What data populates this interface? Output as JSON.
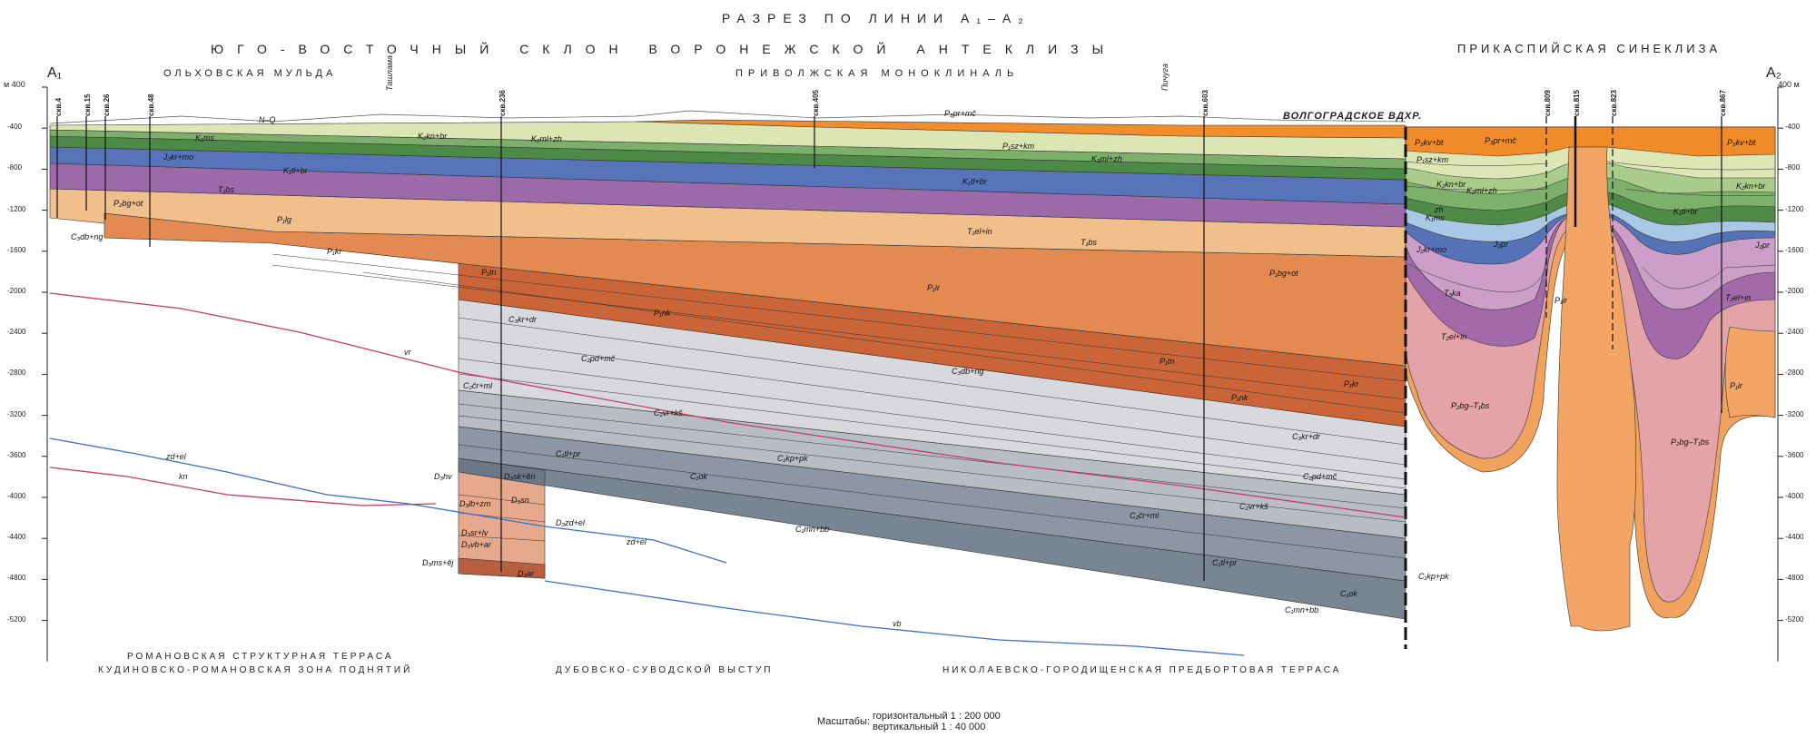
{
  "title": "РАЗРЕЗ ПО ЛИНИИ А₁–А₂",
  "region_left": "ЮГО-ВОСТОЧНЫЙ СКЛОН ВОРОНЕЖСКОЙ АНТЕКЛИЗЫ",
  "region_right": "ПРИКАСПИЙСКАЯ СИНЕКЛИЗА",
  "subregion_left": "ОЛЬХОВСКАЯ МУЛЬДА",
  "subregion_center": "ПРИВОЛЖСКАЯ МОНОКЛИНАЛЬ",
  "line_start": "А₁",
  "line_end": "А₂",
  "unit_left": "м 400",
  "unit_right": "400 м",
  "depth_ticks": [
    "-400",
    "-800",
    "-1200",
    "-1600",
    "-2000",
    "-2400",
    "-2800",
    "-3200",
    "-3600",
    "-4000",
    "-4400",
    "-4800",
    "-5200"
  ],
  "rivers": [
    "Ташлама",
    "Пичуга"
  ],
  "reservoir": "ВОЛГОГРАДСКОЕ ВДХР.",
  "wells": [
    "скв.4",
    "скв.15",
    "скв.26",
    "скв.48",
    "скв.236",
    "скв.405",
    "скв.603",
    "скв.809",
    "скв.815",
    "скв.823",
    "скв.867"
  ],
  "zones_bottom": {
    "left_1": "РОМАНОВСКАЯ СТРУКТУРНАЯ ТЕРРАСА",
    "left_2": "КУДИНОВСКО-РОМАНОВСКАЯ ЗОНА ПОДНЯТИЙ",
    "center": "ДУБОВСКО-СУВОДСКОЙ ВЫСТУП",
    "right": "НИКОЛАЕВСКО-ГОРОДИЩЕНСКАЯ ПРЕДБОРТОВАЯ ТЕРРАСА"
  },
  "scale": {
    "label": "Масштабы:",
    "horizontal": "горизонтальный 1 : 200 000",
    "vertical": "вертикальный 1 : 40 000"
  },
  "reflectors": [
    "vr",
    "zd+el",
    "kn",
    "vb"
  ],
  "strata_labels": [
    "N–Q",
    "K₁ms",
    "K₂kn+br",
    "K₂ml+zh",
    "J₂kr+mo",
    "K₁tl+br",
    "T₁bs",
    "P₂bg+ot",
    "P₁lg",
    "P₁kr",
    "C₃db+ng",
    "P₁tn",
    "C₃kr+dr",
    "P₁nk",
    "C₂pd+mč",
    "C₂čr+ml",
    "C₂vr+kš",
    "C₁tl+pr",
    "C₁kp+pk",
    "C₁ok",
    "D₃hv",
    "D₃sk+ěn",
    "D₃lb+zm",
    "D₃sn",
    "D₃zd+el",
    "D₃sr+lv",
    "D₃vb+ar",
    "D₃ms+ěj",
    "D₃ar",
    "C₁mn+bb",
    "P₃pr+mč",
    "P₁sz+km",
    "K₂ml+zh",
    "K₁tl+br",
    "T₁el+in",
    "T₁bs",
    "P₁bg+ot",
    "P₁ir",
    "C₃db+ng",
    "P₁tn",
    "P₁kr",
    "P₁nk",
    "C₃kr+dr",
    "C₂pd+mč",
    "C₂čr+ml",
    "C₂vr+kš",
    "C₁tl+pr",
    "C₁kp+pk",
    "C₁ok",
    "C₁mn+bb",
    "P₃kv+bt",
    "P₃pr+mč",
    "P₁sz+km",
    "K₂kn+br",
    "K₂ml+zh",
    "zh",
    "K₁ms",
    "J₂kr+mo",
    "J₂pr",
    "T₃ka",
    "T₂el+in",
    "P₂bg–T₁bs",
    "P₁ir",
    "P₃kv+bt",
    "K₂kn+br",
    "K₁tl+br",
    "J₂pr",
    "T₂el+in",
    "P₂bg–T₁bs",
    "P₁ir"
  ],
  "colors": {
    "quaternary": "#f08b28",
    "cretaceous_pale": "#dfe8b8",
    "cretaceous_green": "#5f9a50",
    "jurassic_blue": "#5572b8",
    "triassic_purple": "#9b6aa8",
    "permian_light": "#f0bf8a",
    "permian_mid": "#e58d52",
    "permian_dark": "#cc6a3c",
    "carb_light": "#dcdcdc",
    "carb_mid": "#aab0b8",
    "carb_dark": "#6d7887",
    "devonian": "#d8957a",
    "reflector_red": "#c33c6a",
    "reflector_blue": "#3b6fc8",
    "basin_pink": "#e4a4a8",
    "basin_orange": "#f3a35c"
  }
}
